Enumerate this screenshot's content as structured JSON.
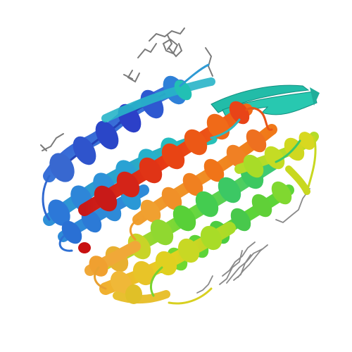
{
  "image": {
    "background": "#ffffff",
    "subject": "protein-ribbon-structure",
    "colormap": [
      "#2233cc",
      "#3a6fd8",
      "#28b0cc",
      "#2cc8a0",
      "#38d060",
      "#8fdc28",
      "#d8d820",
      "#f0a020",
      "#f05a10",
      "#d82418",
      "#c01010"
    ],
    "ligand_color": "#707070",
    "strand_color": "#22c0a8"
  }
}
